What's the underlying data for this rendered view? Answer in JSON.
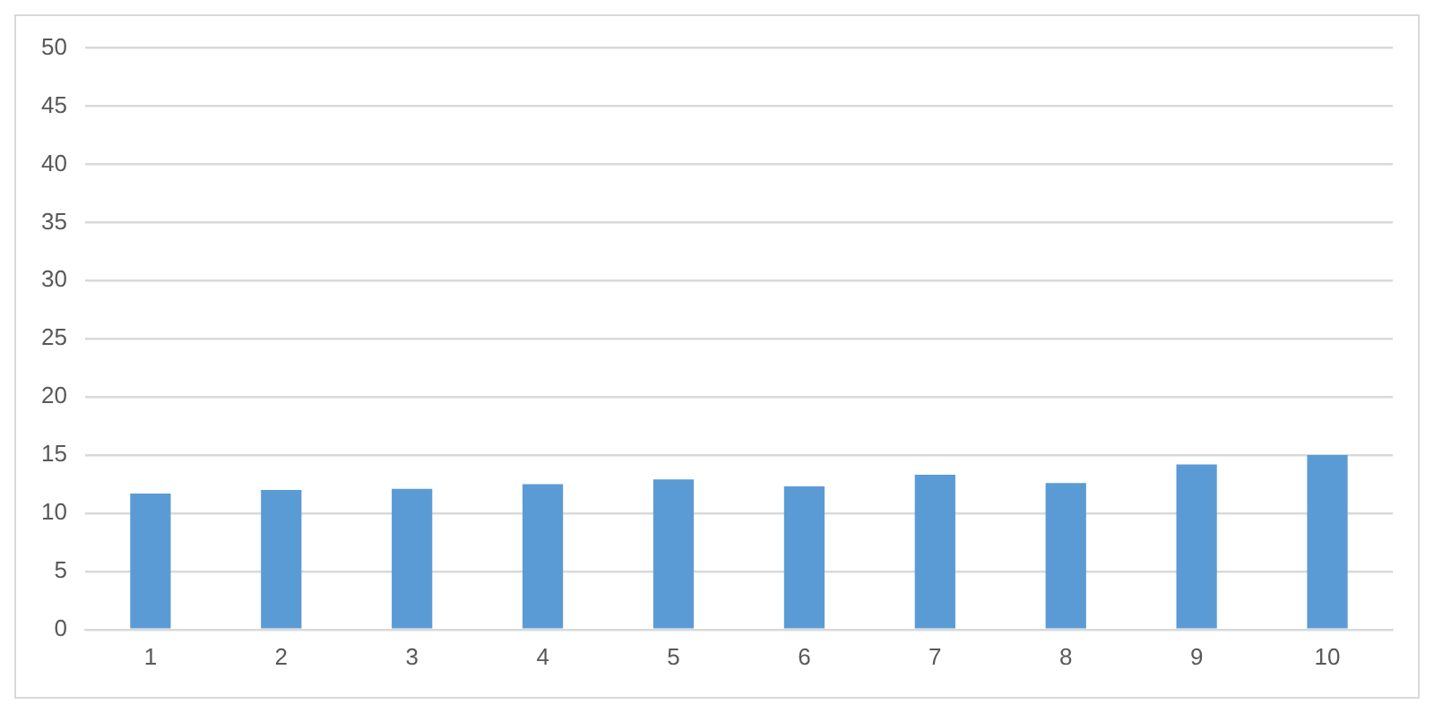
{
  "chart_data": {
    "type": "bar",
    "categories": [
      "1",
      "2",
      "3",
      "4",
      "5",
      "6",
      "7",
      "8",
      "9",
      "10"
    ],
    "values": [
      11.7,
      12.0,
      12.1,
      12.5,
      12.9,
      12.3,
      13.3,
      12.6,
      14.2,
      15.0
    ],
    "color": "#5b9bd5",
    "ylim": [
      0,
      50
    ],
    "yticks": [
      0,
      5,
      10,
      15,
      20,
      25,
      30,
      35,
      40,
      45,
      50
    ],
    "grid": "y",
    "legend": false
  }
}
